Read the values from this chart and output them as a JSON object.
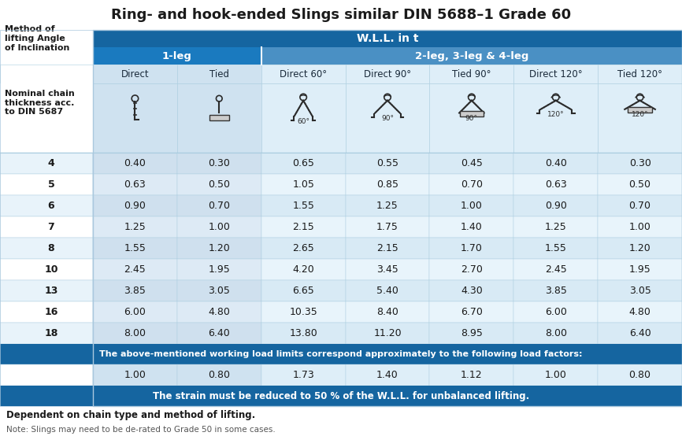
{
  "title": "Ring- and hook-ended Slings similar DIN 5688–1 Grade 60",
  "wll_header": "W.L.L. in t",
  "col1_header": "1-leg",
  "col2_header": "2-leg, 3-leg & 4-leg",
  "method_label": "Method of\nlifting Angle\nof Inclination",
  "nominal_label": "Nominal chain\nthickness acc.\nto DIN 5687",
  "columns": [
    "Direct",
    "Tied",
    "Direct 60°",
    "Direct 90°",
    "Tied 90°",
    "Direct 120°",
    "Tied 120°"
  ],
  "rows": [
    "4",
    "5",
    "6",
    "7",
    "8",
    "10",
    "13",
    "16",
    "18"
  ],
  "data": [
    [
      "0.40",
      "0.30",
      "0.65",
      "0.55",
      "0.45",
      "0.40",
      "0.30"
    ],
    [
      "0.63",
      "0.50",
      "1.05",
      "0.85",
      "0.70",
      "0.63",
      "0.50"
    ],
    [
      "0.90",
      "0.70",
      "1.55",
      "1.25",
      "1.00",
      "0.90",
      "0.70"
    ],
    [
      "1.25",
      "1.00",
      "2.15",
      "1.75",
      "1.40",
      "1.25",
      "1.00"
    ],
    [
      "1.55",
      "1.20",
      "2.65",
      "2.15",
      "1.70",
      "1.55",
      "1.20"
    ],
    [
      "2.45",
      "1.95",
      "4.20",
      "3.45",
      "2.70",
      "2.45",
      "1.95"
    ],
    [
      "3.85",
      "3.05",
      "6.65",
      "5.40",
      "4.30",
      "3.85",
      "3.05"
    ],
    [
      "6.00",
      "4.80",
      "10.35",
      "8.40",
      "6.70",
      "6.00",
      "4.80"
    ],
    [
      "8.00",
      "6.40",
      "13.80",
      "11.20",
      "8.95",
      "8.00",
      "6.40"
    ]
  ],
  "load_factors": [
    "1.00",
    "0.80",
    "1.73",
    "1.40",
    "1.12",
    "1.00",
    "0.80"
  ],
  "load_factors_label": "The above-mentioned working load limits correspond approximately to the following load factors:",
  "strain_label": "The strain must be reduced to 50 % of the W.L.L. for unbalanced lifting.",
  "footnote1": "Dependent on chain type and method of lifting.",
  "footnote2": "Note: Slings may need to be de-rated to Grade 50 in some cases.",
  "color_dark_blue": "#1565a0",
  "color_mid_blue": "#1a7abf",
  "color_sub_blue": "#4a90c4",
  "color_bg_col1": "#cfe2f0",
  "color_bg_col2": "#deeef8",
  "color_row_even": "#e8f3fa",
  "color_row_odd": "#f5fafd",
  "color_left_bg": "#f0f7fc",
  "color_white": "#ffffff",
  "color_grid": "#aacde0"
}
